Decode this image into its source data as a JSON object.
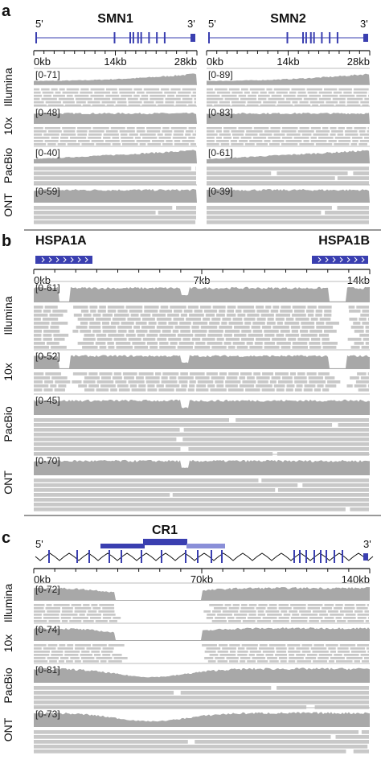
{
  "panels": [
    {
      "label": "a",
      "tracks": [
        "Illumina",
        "10x",
        "PacBio",
        "ONT"
      ],
      "genes": [
        {
          "name": "SMN1",
          "five": "5'",
          "three": "3'",
          "ticks": [
            "0kb",
            "14kb",
            "28kb"
          ],
          "ranges": [
            "[0-71]",
            "[0-48]",
            "[0-40]",
            "[0-59]"
          ]
        },
        {
          "name": "SMN2",
          "five": "5'",
          "three": "3'",
          "ticks": [
            "0kb",
            "14kb",
            "28kb"
          ],
          "ranges": [
            "[0-89]",
            "[0-83]",
            "[0-61]",
            "[0-39]"
          ]
        }
      ]
    },
    {
      "label": "b",
      "tracks": [
        "Illumina",
        "10x",
        "PacBio",
        "ONT"
      ],
      "genes": [
        "HSPA1A",
        "HSPA1B"
      ],
      "ticks": [
        "0kb",
        "7kb",
        "14kb"
      ],
      "ranges": [
        "[0-61]",
        "[0-52]",
        "[0-45]",
        "[0-70]"
      ]
    },
    {
      "label": "c",
      "tracks": [
        "Illumina",
        "10x",
        "PacBio",
        "ONT"
      ],
      "gene": "CR1",
      "five": "5'",
      "three": "3'",
      "ticks": [
        "0kb",
        "70kb",
        "140kb"
      ],
      "ranges": [
        "[0-72]",
        "[0-74]",
        "[0-81]",
        "[0-73]"
      ]
    }
  ]
}
